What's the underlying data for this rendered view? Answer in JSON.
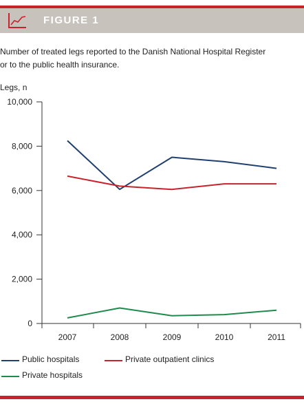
{
  "header": {
    "figure_label": "FIGURE 1"
  },
  "caption": {
    "line1": "Number of treated legs reported to the Danish National Hospital Register",
    "line2": "or to the public health insurance."
  },
  "colors": {
    "accent_red": "#c8222d",
    "header_bg": "#c7c2bc",
    "public_hospitals": "#1f3f6e",
    "private_outpatient": "#c8222d",
    "private_hospitals": "#1e8a4c"
  },
  "icons": [
    "line-chart-icon"
  ],
  "chart_data": {
    "type": "line",
    "title": "",
    "xlabel": "",
    "ylabel": "Legs, n",
    "categories": [
      "2007",
      "2008",
      "2009",
      "2010",
      "2011"
    ],
    "ylim": [
      0,
      10000
    ],
    "yticks": [
      0,
      2000,
      4000,
      6000,
      8000,
      10000
    ],
    "ytick_labels": [
      "0",
      "2,000",
      "4,000",
      "6,000",
      "8,000",
      "10,000"
    ],
    "grid": false,
    "legend": "bottom",
    "series": [
      {
        "name": "Public hospitals",
        "color": "#1f3f6e",
        "values": [
          8250,
          6050,
          7500,
          7300,
          7000
        ]
      },
      {
        "name": "Private outpatient clinics",
        "color": "#c8222d",
        "values": [
          6650,
          6200,
          6050,
          6300,
          6300
        ]
      },
      {
        "name": "Private hospitals",
        "color": "#1e8a4c",
        "values": [
          250,
          700,
          350,
          400,
          600
        ]
      }
    ]
  }
}
